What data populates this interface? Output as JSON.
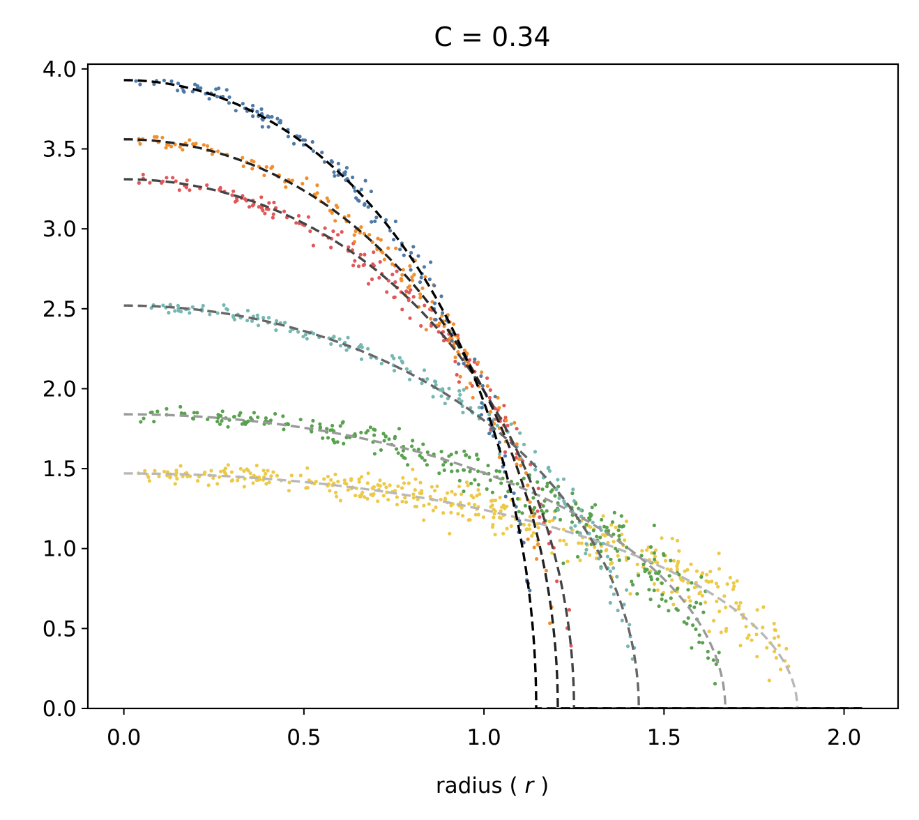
{
  "chart_data": {
    "type": "scatter",
    "title": "C = 0.34",
    "xlabel_prefix": "radius ( ",
    "xlabel_var": "r",
    "xlabel_suffix": " )",
    "ylabel": "",
    "xlim": [
      -0.1,
      2.15
    ],
    "ylim": [
      0.0,
      4.03
    ],
    "xticks": [
      0.0,
      0.5,
      1.0,
      1.5,
      2.0
    ],
    "xtick_labels": [
      "0.0",
      "0.5",
      "1.0",
      "1.5",
      "2.0"
    ],
    "yticks": [
      0.0,
      0.5,
      1.0,
      1.5,
      2.0,
      2.5,
      3.0,
      3.5,
      4.0
    ],
    "ytick_labels": [
      "0.0",
      "0.5",
      "1.0",
      "1.5",
      "2.0",
      "2.5",
      "3.0",
      "3.5",
      "4.0"
    ],
    "grid": false,
    "legend": "none",
    "fit_curves_x_max": 2.05,
    "series": [
      {
        "color": "#4e79a7",
        "fit_color": "#000000",
        "center_value": 3.93,
        "edge_radius": 1.145,
        "scatter_spread": 0.01,
        "scatter_min_r": 0.03,
        "scatter_max_r": 1.13,
        "scatter_max_r_jitter": 0.01,
        "points": 170
      },
      {
        "color": "#f28e2b",
        "fit_color": "#222222",
        "center_value": 3.56,
        "edge_radius": 1.205,
        "scatter_spread": 0.012,
        "scatter_min_r": 0.03,
        "scatter_max_r": 1.19,
        "scatter_max_r_jitter": 0.01,
        "points": 170
      },
      {
        "color": "#e15759",
        "fit_color": "#444444",
        "center_value": 3.31,
        "edge_radius": 1.25,
        "scatter_spread": 0.012,
        "scatter_min_r": 0.03,
        "scatter_max_r": 1.24,
        "scatter_max_r_jitter": 0.01,
        "points": 170
      },
      {
        "color": "#76b7b2",
        "fit_color": "#666666",
        "center_value": 2.52,
        "edge_radius": 1.43,
        "scatter_spread": 0.015,
        "scatter_min_r": 0.03,
        "scatter_max_r": 1.42,
        "scatter_max_r_jitter": 0.012,
        "points": 190
      },
      {
        "color": "#59a14f",
        "fit_color": "#999999",
        "center_value": 1.84,
        "edge_radius": 1.67,
        "scatter_spread": 0.03,
        "scatter_min_r": 0.03,
        "scatter_max_r": 1.65,
        "scatter_max_r_jitter": 0.02,
        "points": 320
      },
      {
        "color": "#edc948",
        "fit_color": "#b8b8b8",
        "center_value": 1.47,
        "edge_radius": 1.87,
        "scatter_spread": 0.04,
        "scatter_min_r": 0.03,
        "scatter_max_r": 1.86,
        "scatter_max_r_jitter": 0.02,
        "points": 420
      }
    ]
  }
}
